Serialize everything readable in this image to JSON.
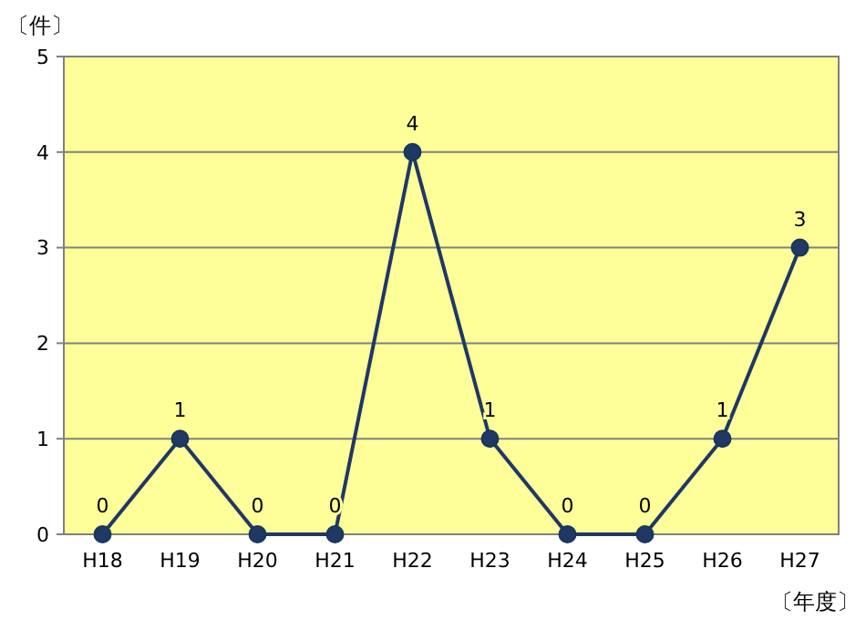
{
  "chart_data": {
    "type": "line",
    "ylabel": "〔件〕",
    "xlabel": "〔年度〕",
    "categories": [
      "H18",
      "H19",
      "H20",
      "H21",
      "H22",
      "H23",
      "H24",
      "H25",
      "H26",
      "H27"
    ],
    "series": [
      {
        "color": "#1f3864",
        "values": [
          0,
          1,
          0,
          0,
          4,
          1,
          0,
          0,
          1,
          3
        ]
      }
    ],
    "ylim": [
      0,
      5
    ],
    "yticks": [
      0,
      1,
      2,
      3,
      4,
      5
    ],
    "grid": "y",
    "marker": "circle",
    "line_style": "solid",
    "data_labels": true
  }
}
